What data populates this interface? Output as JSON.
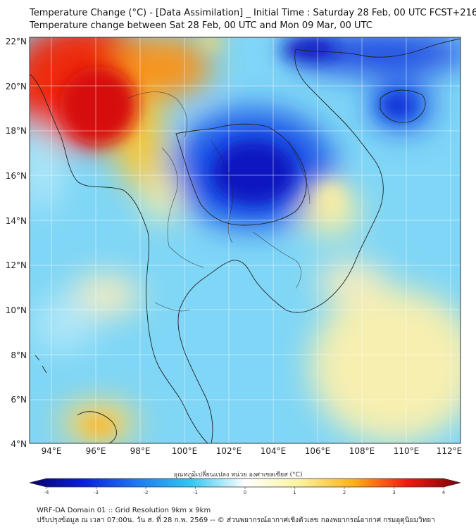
{
  "title": {
    "line1": "Temperature Change (°C) - [Data Assimilation] _ Initial Time : Saturday 28 Feb, 00 UTC FCST+216",
    "line2": "Temperature change between Sat 28 Feb, 00 UTC and Mon 09 Mar, 00 UTC"
  },
  "axes": {
    "lat_labels": [
      "22°N",
      "20°N",
      "18°N",
      "16°N",
      "14°N",
      "12°N",
      "10°N",
      "8°N",
      "6°N",
      "4°N"
    ],
    "lon_labels": [
      "94°E",
      "96°E",
      "98°E",
      "100°E",
      "102°E",
      "104°E",
      "106°E",
      "108°E",
      "110°E",
      "112°E"
    ]
  },
  "colorbar": {
    "title": "อุณหภูมิเปลี่ยนแปลง หน่วย องศาเซลเซียส (°C)",
    "ticks": [
      "-4",
      "-3",
      "-2",
      "-1",
      "0",
      "1",
      "2",
      "3",
      "4"
    ],
    "colors": [
      "#08006b",
      "#0a1fd9",
      "#1e7bf0",
      "#33c7f2",
      "#ffffff",
      "#fbf4a0",
      "#ffb21a",
      "#f01b10",
      "#7a0008"
    ]
  },
  "footer": {
    "line1": "WRF-DA Domain 01 :: Grid Resolution 9km x 9km",
    "line2": "ปรับปรุงข้อมูล ณ เวลา 07:00น. วัน ส. ที่ 28 ก.พ. 2569 -- © ส่วนพยากรณ์อากาศเชิงตัวเลข กองพยากรณ์อากาศ กรมอุตุนิยมวิทยา"
  }
}
